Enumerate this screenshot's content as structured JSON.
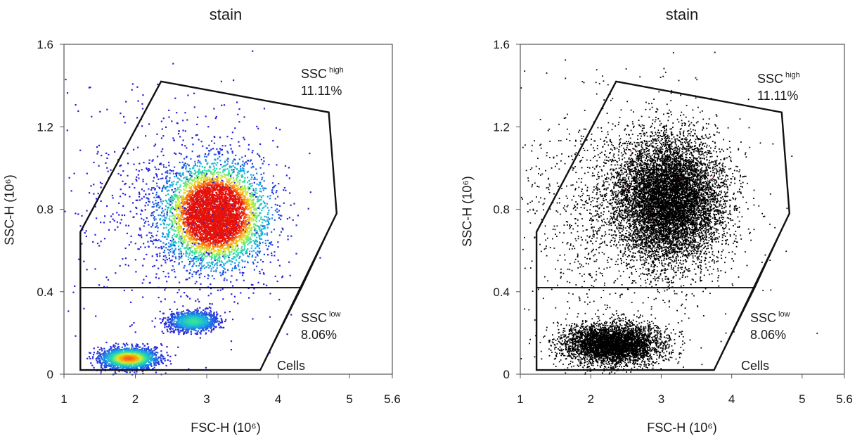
{
  "chart_data": [
    {
      "type": "scatter",
      "style": "density",
      "title": "stain",
      "xlabel": "FSC-H (10⁶)",
      "ylabel": "SSC-H (10⁶)",
      "xlim": [
        1,
        5.6
      ],
      "ylim": [
        0,
        1.6
      ],
      "xticks": [
        1,
        2,
        3,
        4,
        5,
        5.6
      ],
      "yticks": [
        0,
        0.4,
        0.8,
        1.2,
        1.6
      ],
      "populations": [
        {
          "center": [
            3.1,
            0.78
          ],
          "spread": [
            0.7,
            0.24
          ],
          "weight": 0.55
        },
        {
          "center": [
            1.9,
            0.08
          ],
          "spread": [
            0.38,
            0.05
          ],
          "weight": 0.25
        },
        {
          "center": [
            2.8,
            0.26
          ],
          "spread": [
            0.34,
            0.05
          ],
          "weight": 0.12
        },
        {
          "center": [
            2.5,
            0.8
          ],
          "spread": [
            1.6,
            0.55
          ],
          "weight": 0.08
        }
      ],
      "gates": [
        {
          "name": "SSC",
          "sup": "high",
          "percent": "11.11%",
          "polygon": [
            [
              1.23,
              0.42
            ],
            [
              1.23,
              0.69
            ],
            [
              2.36,
              1.42
            ],
            [
              4.71,
              1.27
            ],
            [
              4.82,
              0.78
            ],
            [
              4.33,
              0.42
            ]
          ]
        },
        {
          "name": "SSC",
          "sup": "low",
          "percent": "8.06%",
          "polygon": [
            [
              1.23,
              0.02
            ],
            [
              1.23,
              0.42
            ],
            [
              4.33,
              0.42
            ],
            [
              3.75,
              0.02
            ]
          ]
        },
        {
          "name": "Cells",
          "polygon": [
            [
              1.23,
              0.02
            ],
            [
              1.23,
              0.69
            ],
            [
              2.36,
              1.42
            ],
            [
              4.71,
              1.27
            ],
            [
              4.82,
              0.78
            ],
            [
              3.75,
              0.02
            ]
          ]
        }
      ],
      "color_scale": [
        "#2a1bd9",
        "#16a7e8",
        "#2fe0a0",
        "#d9ef2a",
        "#ff8a10",
        "#e5120a"
      ]
    },
    {
      "type": "scatter",
      "style": "black-dots",
      "title": "stain",
      "xlabel": "FSC-H (10⁶)",
      "ylabel": "SSC-H (10⁶)",
      "xlim": [
        1,
        5.6
      ],
      "ylim": [
        0,
        1.6
      ],
      "xticks": [
        1,
        2,
        3,
        4,
        5,
        5.6
      ],
      "yticks": [
        0,
        0.4,
        0.8,
        1.2,
        1.6
      ],
      "populations": [
        {
          "center": [
            3.1,
            0.85
          ],
          "spread": [
            0.75,
            0.3
          ],
          "weight": 0.6
        },
        {
          "center": [
            2.3,
            0.15
          ],
          "spread": [
            0.7,
            0.1
          ],
          "weight": 0.3
        },
        {
          "center": [
            2.5,
            0.8
          ],
          "spread": [
            1.6,
            0.55
          ],
          "weight": 0.1
        }
      ],
      "gates": [
        {
          "name": "SSC",
          "sup": "high",
          "percent": "11.11%",
          "polygon": [
            [
              1.23,
              0.42
            ],
            [
              1.23,
              0.69
            ],
            [
              2.36,
              1.42
            ],
            [
              4.71,
              1.27
            ],
            [
              4.82,
              0.78
            ],
            [
              4.33,
              0.42
            ]
          ]
        },
        {
          "name": "SSC",
          "sup": "low",
          "percent": "8.06%",
          "polygon": [
            [
              1.23,
              0.02
            ],
            [
              1.23,
              0.42
            ],
            [
              4.33,
              0.42
            ],
            [
              3.75,
              0.02
            ]
          ]
        },
        {
          "name": "Cells",
          "polygon": [
            [
              1.23,
              0.02
            ],
            [
              1.23,
              0.69
            ],
            [
              2.36,
              1.42
            ],
            [
              4.71,
              1.27
            ],
            [
              4.82,
              0.78
            ],
            [
              3.75,
              0.02
            ]
          ]
        }
      ],
      "dot_color": "#000000",
      "accent_color": "#cc1010"
    }
  ]
}
